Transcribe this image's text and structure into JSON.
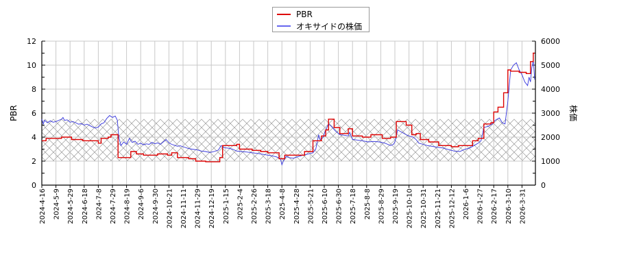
{
  "chart_data": {
    "type": "line",
    "title": "",
    "xlabel": "",
    "ylabel": "PBR",
    "y2label": "株価",
    "ylim": [
      0,
      12
    ],
    "y2lim": [
      0,
      6000
    ],
    "yticks": [
      0,
      2,
      4,
      6,
      8,
      10,
      12
    ],
    "y2ticks": [
      0,
      1000,
      2000,
      3000,
      4000,
      5000,
      6000
    ],
    "grid": true,
    "legend_position": "top-center",
    "shaded_band": {
      "from": 2.0,
      "to": 5.5,
      "axis": "PBR",
      "style": "crosshatch"
    },
    "categories": [
      "2024-4-16",
      "2024-5-9",
      "2024-5-29",
      "2024-6-18",
      "2024-7-8",
      "2024-7-29",
      "2024-8-19",
      "2024-9-6",
      "2024-9-30",
      "2024-10-21",
      "2024-11-11",
      "2024-11-29",
      "2024-12-19",
      "2025-1-15",
      "2025-2-4",
      "2025-2-26",
      "2025-3-18",
      "2025-4-8",
      "2025-4-28",
      "2025-5-21",
      "2025-6-10",
      "2025-6-30",
      "2025-7-18",
      "2025-8-8",
      "2025-8-29",
      "2025-9-19",
      "2025-10-10",
      "2025-10-31",
      "2025-11-21",
      "2025-12-12",
      "2026-1-6",
      "2026-1-27",
      "2026-2-17",
      "2026-3-10",
      "2026-3-31"
    ],
    "series": [
      {
        "name": "PBR",
        "axis": "left",
        "color": "#dd0000",
        "values": [
          3.7,
          3.9,
          4.0,
          3.7,
          3.6,
          4.2,
          2.3,
          2.6,
          2.5,
          2.7,
          2.3,
          2.0,
          1.95,
          3.3,
          3.0,
          2.9,
          2.7,
          2.2,
          2.5,
          2.8,
          4.1,
          4.8,
          4.7,
          4.0,
          4.2,
          4.0,
          5.0,
          3.8,
          3.6,
          3.3,
          3.3,
          3.9,
          6.1,
          9.6,
          9.4
        ]
      },
      {
        "name": "オキサイドの株価",
        "axis": "right",
        "color": "#3333dd",
        "values": [
          2750,
          2650,
          2650,
          2550,
          2450,
          2850,
          1750,
          1700,
          1750,
          1850,
          1600,
          1450,
          1350,
          1550,
          1400,
          1350,
          1250,
          900,
          1200,
          1350,
          2200,
          2150,
          1950,
          1850,
          1800,
          1800,
          2050,
          1700,
          1550,
          1450,
          1600,
          1850,
          2700,
          4700,
          4300
        ]
      }
    ],
    "dense": {
      "pbr_steps": [
        [
          0,
          3.7
        ],
        [
          0.3,
          3.9
        ],
        [
          1.4,
          4.0
        ],
        [
          2.1,
          3.8
        ],
        [
          2.9,
          3.7
        ],
        [
          4.0,
          3.5
        ],
        [
          4.2,
          3.9
        ],
        [
          4.7,
          4.0
        ],
        [
          4.9,
          4.2
        ],
        [
          5.4,
          2.3
        ],
        [
          6.3,
          2.8
        ],
        [
          6.7,
          2.6
        ],
        [
          7.2,
          2.5
        ],
        [
          8.2,
          2.6
        ],
        [
          8.9,
          2.5
        ],
        [
          9.2,
          2.7
        ],
        [
          9.6,
          2.3
        ],
        [
          10.4,
          2.2
        ],
        [
          10.9,
          2.0
        ],
        [
          11.6,
          1.95
        ],
        [
          12.6,
          2.3
        ],
        [
          12.8,
          3.3
        ],
        [
          13.8,
          3.4
        ],
        [
          14.0,
          3.0
        ],
        [
          14.9,
          2.9
        ],
        [
          15.5,
          2.8
        ],
        [
          16.0,
          2.7
        ],
        [
          16.8,
          2.2
        ],
        [
          17.2,
          2.5
        ],
        [
          18.6,
          2.8
        ],
        [
          19.2,
          3.7
        ],
        [
          19.8,
          4.1
        ],
        [
          20.1,
          4.6
        ],
        [
          20.3,
          5.5
        ],
        [
          20.7,
          4.8
        ],
        [
          21.1,
          4.3
        ],
        [
          21.7,
          4.7
        ],
        [
          22.0,
          4.1
        ],
        [
          22.7,
          4.0
        ],
        [
          23.3,
          4.2
        ],
        [
          24.1,
          3.9
        ],
        [
          24.7,
          4.0
        ],
        [
          25.1,
          5.3
        ],
        [
          25.8,
          5.0
        ],
        [
          26.2,
          4.2
        ],
        [
          26.5,
          4.3
        ],
        [
          26.8,
          3.8
        ],
        [
          27.4,
          3.6
        ],
        [
          28.1,
          3.3
        ],
        [
          29.0,
          3.2
        ],
        [
          29.5,
          3.3
        ],
        [
          30.5,
          3.7
        ],
        [
          30.9,
          3.9
        ],
        [
          31.3,
          5.1
        ],
        [
          31.8,
          5.2
        ],
        [
          32.0,
          6.1
        ],
        [
          32.3,
          6.5
        ],
        [
          32.7,
          7.7
        ],
        [
          33.0,
          9.6
        ],
        [
          33.2,
          9.5
        ],
        [
          33.8,
          9.4
        ],
        [
          34.3,
          9.3
        ],
        [
          34.6,
          10.3
        ],
        [
          34.8,
          11.0
        ],
        [
          34.9,
          11.0
        ]
      ],
      "price_points": [
        [
          0,
          2750
        ],
        [
          0.1,
          2550
        ],
        [
          0.2,
          2700
        ],
        [
          0.4,
          2600
        ],
        [
          0.6,
          2680
        ],
        [
          0.8,
          2620
        ],
        [
          1.0,
          2650
        ],
        [
          1.2,
          2700
        ],
        [
          1.4,
          2750
        ],
        [
          1.5,
          2820
        ],
        [
          1.6,
          2700
        ],
        [
          1.8,
          2720
        ],
        [
          2.0,
          2620
        ],
        [
          2.2,
          2650
        ],
        [
          2.4,
          2600
        ],
        [
          2.6,
          2540
        ],
        [
          2.8,
          2560
        ],
        [
          3.0,
          2500
        ],
        [
          3.2,
          2540
        ],
        [
          3.4,
          2480
        ],
        [
          3.6,
          2420
        ],
        [
          3.8,
          2380
        ],
        [
          4.0,
          2420
        ],
        [
          4.2,
          2550
        ],
        [
          4.4,
          2600
        ],
        [
          4.6,
          2780
        ],
        [
          4.8,
          2900
        ],
        [
          5.0,
          2820
        ],
        [
          5.2,
          2880
        ],
        [
          5.35,
          2700
        ],
        [
          5.45,
          2000
        ],
        [
          5.6,
          1650
        ],
        [
          5.8,
          1800
        ],
        [
          6.0,
          1700
        ],
        [
          6.2,
          1950
        ],
        [
          6.4,
          1780
        ],
        [
          6.6,
          1830
        ],
        [
          6.8,
          1700
        ],
        [
          7.0,
          1750
        ],
        [
          7.2,
          1680
        ],
        [
          7.4,
          1720
        ],
        [
          7.6,
          1700
        ],
        [
          7.8,
          1780
        ],
        [
          8.0,
          1720
        ],
        [
          8.2,
          1760
        ],
        [
          8.4,
          1700
        ],
        [
          8.6,
          1800
        ],
        [
          8.8,
          1900
        ],
        [
          9.0,
          1760
        ],
        [
          9.2,
          1700
        ],
        [
          9.4,
          1660
        ],
        [
          9.6,
          1620
        ],
        [
          9.8,
          1640
        ],
        [
          10.0,
          1600
        ],
        [
          10.3,
          1540
        ],
        [
          10.6,
          1500
        ],
        [
          11.0,
          1470
        ],
        [
          11.3,
          1420
        ],
        [
          11.6,
          1400
        ],
        [
          11.9,
          1360
        ],
        [
          12.2,
          1400
        ],
        [
          12.5,
          1460
        ],
        [
          12.7,
          1650
        ],
        [
          12.9,
          1560
        ],
        [
          13.2,
          1540
        ],
        [
          13.5,
          1500
        ],
        [
          13.8,
          1420
        ],
        [
          14.1,
          1400
        ],
        [
          14.5,
          1380
        ],
        [
          14.9,
          1350
        ],
        [
          15.3,
          1320
        ],
        [
          15.7,
          1280
        ],
        [
          16.0,
          1250
        ],
        [
          16.3,
          1220
        ],
        [
          16.6,
          1180
        ],
        [
          16.9,
          1100
        ],
        [
          17.0,
          850
        ],
        [
          17.1,
          1000
        ],
        [
          17.3,
          1200
        ],
        [
          17.5,
          1150
        ],
        [
          17.8,
          1120
        ],
        [
          18.1,
          1180
        ],
        [
          18.5,
          1250
        ],
        [
          18.9,
          1300
        ],
        [
          19.2,
          1350
        ],
        [
          19.4,
          1500
        ],
        [
          19.6,
          2100
        ],
        [
          19.7,
          1900
        ],
        [
          19.9,
          1980
        ],
        [
          20.1,
          2300
        ],
        [
          20.3,
          2550
        ],
        [
          20.5,
          2450
        ],
        [
          20.8,
          2250
        ],
        [
          21.1,
          2100
        ],
        [
          21.4,
          2080
        ],
        [
          21.7,
          2050
        ],
        [
          21.8,
          2200
        ],
        [
          22.0,
          1900
        ],
        [
          22.3,
          1880
        ],
        [
          22.7,
          1850
        ],
        [
          23.1,
          1800
        ],
        [
          23.5,
          1820
        ],
        [
          23.9,
          1800
        ],
        [
          24.3,
          1750
        ],
        [
          24.7,
          1650
        ],
        [
          24.9,
          1700
        ],
        [
          25.0,
          1800
        ],
        [
          25.2,
          2300
        ],
        [
          25.5,
          2200
        ],
        [
          25.8,
          2100
        ],
        [
          26.0,
          2050
        ],
        [
          26.3,
          2000
        ],
        [
          26.5,
          1900
        ],
        [
          26.7,
          1750
        ],
        [
          27.0,
          1700
        ],
        [
          27.3,
          1650
        ],
        [
          27.6,
          1620
        ],
        [
          28.0,
          1580
        ],
        [
          28.4,
          1550
        ],
        [
          28.8,
          1480
        ],
        [
          29.2,
          1420
        ],
        [
          29.6,
          1400
        ],
        [
          29.9,
          1480
        ],
        [
          30.3,
          1550
        ],
        [
          30.6,
          1650
        ],
        [
          30.9,
          1750
        ],
        [
          31.1,
          1850
        ],
        [
          31.3,
          2400
        ],
        [
          31.6,
          2450
        ],
        [
          31.9,
          2550
        ],
        [
          32.1,
          2700
        ],
        [
          32.4,
          2800
        ],
        [
          32.6,
          2600
        ],
        [
          32.8,
          2550
        ],
        [
          33.0,
          3500
        ],
        [
          33.2,
          4800
        ],
        [
          33.4,
          5000
        ],
        [
          33.6,
          5100
        ],
        [
          33.8,
          4800
        ],
        [
          34.0,
          4600
        ],
        [
          34.2,
          4300
        ],
        [
          34.4,
          4150
        ],
        [
          34.5,
          4500
        ],
        [
          34.6,
          4300
        ],
        [
          34.7,
          4900
        ],
        [
          34.8,
          5200
        ],
        [
          34.9,
          4400
        ]
      ]
    }
  },
  "legend": {
    "items": [
      {
        "label": "PBR",
        "color": "#dd0000"
      },
      {
        "label": "オキサイドの株価",
        "color": "#6666ee"
      }
    ]
  },
  "axes": {
    "left_label": "PBR",
    "right_label": "株価"
  }
}
